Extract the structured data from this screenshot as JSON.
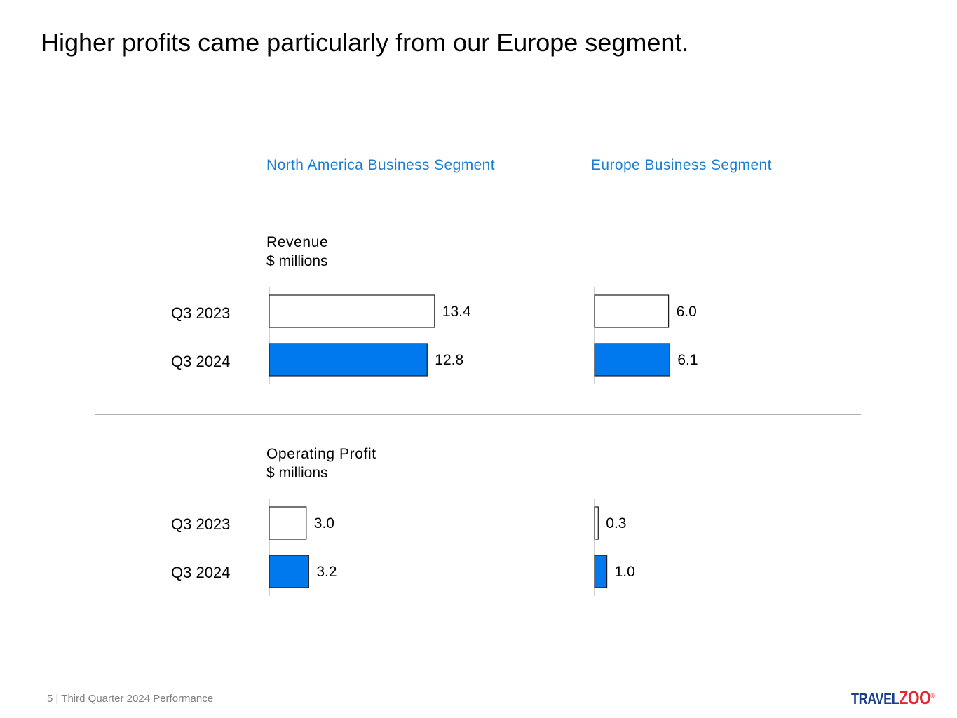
{
  "title": "Higher profits came particularly from our Europe segment.",
  "footer": "5 | Third Quarter 2024 Performance",
  "logo": {
    "part1": "TRAVEL",
    "part2": "ZOO",
    "mark": "®"
  },
  "colors": {
    "accent": "#1a7fd4",
    "bar_current": "#0079ee",
    "bar_prior": "#ffffff"
  },
  "chart_data": {
    "type": "bar",
    "orientation": "horizontal",
    "categories": [
      "Q3 2023",
      "Q3 2024"
    ],
    "segments": [
      "North America Business Segment",
      "Europe Business Segment"
    ],
    "panels": [
      {
        "metric": "Revenue",
        "unit": "$ millions",
        "series": [
          {
            "segment": "North America Business Segment",
            "values": [
              13.4,
              12.8
            ],
            "labels": [
              "13.4",
              "12.8"
            ]
          },
          {
            "segment": "Europe Business Segment",
            "values": [
              6.0,
              6.1
            ],
            "labels": [
              "6.0",
              "6.1"
            ]
          }
        ]
      },
      {
        "metric": "Operating Profit",
        "unit": "$ millions",
        "series": [
          {
            "segment": "North America Business Segment",
            "values": [
              3.0,
              3.2
            ],
            "labels": [
              "3.0",
              "3.2"
            ]
          },
          {
            "segment": "Europe Business Segment",
            "values": [
              0.3,
              1.0
            ],
            "labels": [
              "0.3",
              "1.0"
            ]
          }
        ]
      }
    ],
    "grid": false,
    "legend": "none"
  }
}
